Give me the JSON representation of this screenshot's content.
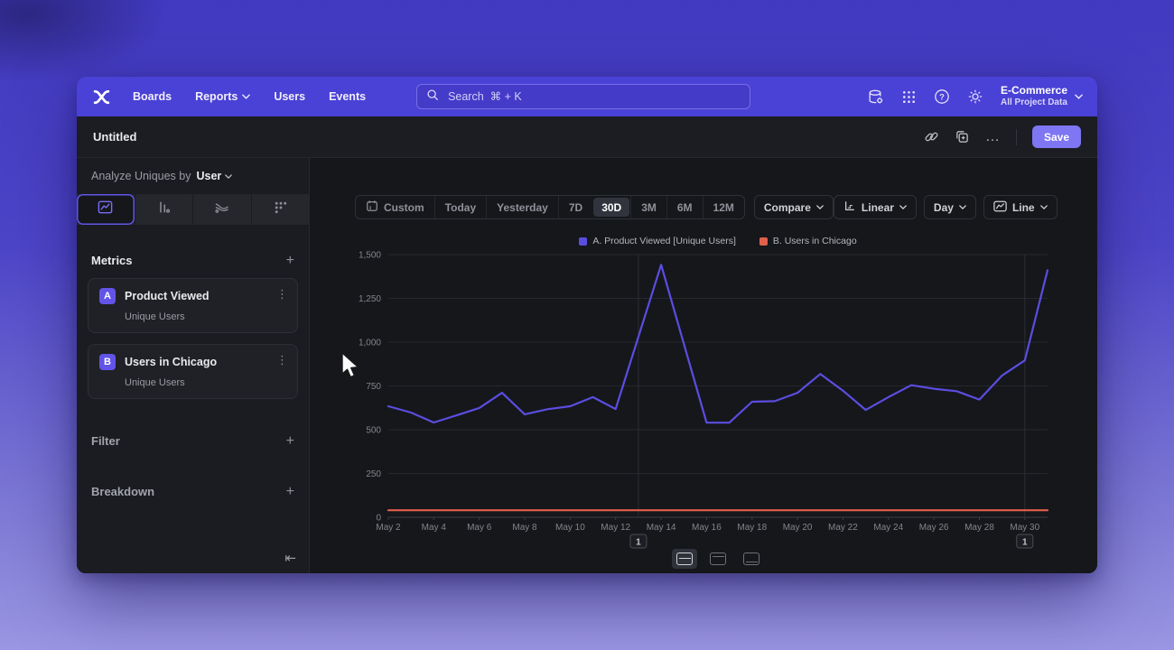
{
  "nav": {
    "items": [
      {
        "label": "Boards"
      },
      {
        "label": "Reports"
      },
      {
        "label": "Users"
      },
      {
        "label": "Events"
      }
    ],
    "search_placeholder": "Search  ⌘ + K",
    "project_name": "E-Commerce",
    "project_subtitle": "All Project Data"
  },
  "titlebar": {
    "title": "Untitled",
    "more_glyph": "…",
    "save_label": "Save"
  },
  "sidebar": {
    "analyze_label": "Analyze Uniques by",
    "analyze_value": "User",
    "metrics_label": "Metrics",
    "metrics": [
      {
        "badge": "A",
        "title": "Product Viewed",
        "subtitle": "Unique Users"
      },
      {
        "badge": "B",
        "title": "Users in Chicago",
        "subtitle": "Unique Users"
      }
    ],
    "filter_label": "Filter",
    "breakdown_label": "Breakdown",
    "plus_glyph": "+",
    "kebab_glyph": "⋮",
    "collapse_glyph": "⇤"
  },
  "toolbar": {
    "ranges": [
      "Custom",
      "Today",
      "Yesterday",
      "7D",
      "30D",
      "3M",
      "6M",
      "12M"
    ],
    "selected_range": "30D",
    "compare_label": "Compare",
    "scale_label": "Linear",
    "granularity_label": "Day",
    "chart_type_label": "Line"
  },
  "chart_data": {
    "type": "line",
    "categories": [
      "May 2",
      "May 3",
      "May 4",
      "May 5",
      "May 6",
      "May 7",
      "May 8",
      "May 9",
      "May 10",
      "May 11",
      "May 12",
      "May 13",
      "May 14",
      "May 15",
      "May 16",
      "May 17",
      "May 18",
      "May 19",
      "May 20",
      "May 21",
      "May 22",
      "May 23",
      "May 24",
      "May 25",
      "May 26",
      "May 27",
      "May 28",
      "May 29",
      "May 30",
      "May 31"
    ],
    "series": [
      {
        "name": "A. Product Viewed [Unique Users]",
        "color": "#5b4de0",
        "values": [
          634,
          598,
          541,
          582,
          624,
          711,
          588,
          617,
          634,
          686,
          618,
          1030,
          1442,
          991,
          540,
          540,
          660,
          663,
          711,
          818,
          723,
          613,
          686,
          754,
          734,
          720,
          672,
          810,
          896,
          1411
        ]
      },
      {
        "name": "B. Users in Chicago",
        "color": "#e0604c",
        "values": [
          40,
          40,
          40,
          40,
          40,
          40,
          40,
          40,
          40,
          40,
          40,
          40,
          40,
          40,
          40,
          40,
          40,
          40,
          40,
          40,
          40,
          40,
          40,
          40,
          40,
          40,
          40,
          40,
          40,
          40
        ]
      }
    ],
    "y_ticks": [
      0,
      250,
      500,
      750,
      1000,
      1250,
      1500
    ],
    "ylim": [
      0,
      1500
    ],
    "x_tick_step": 2,
    "grid": "horizontal",
    "legend_position": "top",
    "annotations": [
      {
        "label": "1",
        "category": "May 13",
        "index": 11
      },
      {
        "label": "1",
        "category": "May 30",
        "index": 28
      }
    ]
  },
  "footer": {
    "layouts": [
      "split-horizontal",
      "panel-top",
      "panel-bottom"
    ],
    "selected": "split-horizontal"
  },
  "colors": {
    "nav_bg": "#4a41d6",
    "accent": "#6254e8",
    "save_bg": "#7e76f3",
    "series_a": "#5b4de0",
    "series_b": "#e0604c"
  }
}
